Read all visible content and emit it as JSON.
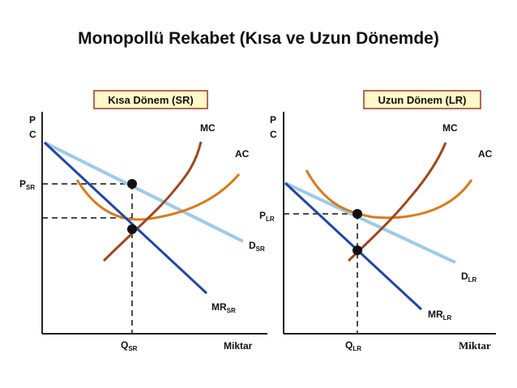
{
  "title": "Monopollü Rekabet (Kısa ve Uzun Dönemde)",
  "colors": {
    "mc": "#a0471b",
    "ac": "#d97b1a",
    "demand": "#9ccbe9",
    "mr": "#1f46a8",
    "badge_fill": "#fff8c7",
    "badge_border": "#9a3b1e",
    "axis": "#222222"
  },
  "short_run": {
    "badge": "Kısa Dönem (SR)",
    "y_axis_p": "P",
    "y_axis_c": "C",
    "price_label": "P",
    "price_sub": "SR",
    "mc_label": "MC",
    "ac_label": "AC",
    "d_label": "D",
    "d_sub": "SR",
    "mr_label": "MR",
    "mr_sub": "SR",
    "q_label": "Q",
    "q_sub": "SR",
    "x_axis_label": "Miktar"
  },
  "long_run": {
    "badge": "Uzun Dönem (LR)",
    "y_axis_p": "P",
    "y_axis_c": "C",
    "price_label": "P",
    "price_sub": "LR",
    "mc_label": "MC",
    "ac_label": "AC",
    "d_label": "D",
    "d_sub": "LR",
    "mr_label": "MR",
    "mr_sub": "LR",
    "q_label": "Q",
    "q_sub": "LR",
    "x_axis_label": "Miktar"
  }
}
